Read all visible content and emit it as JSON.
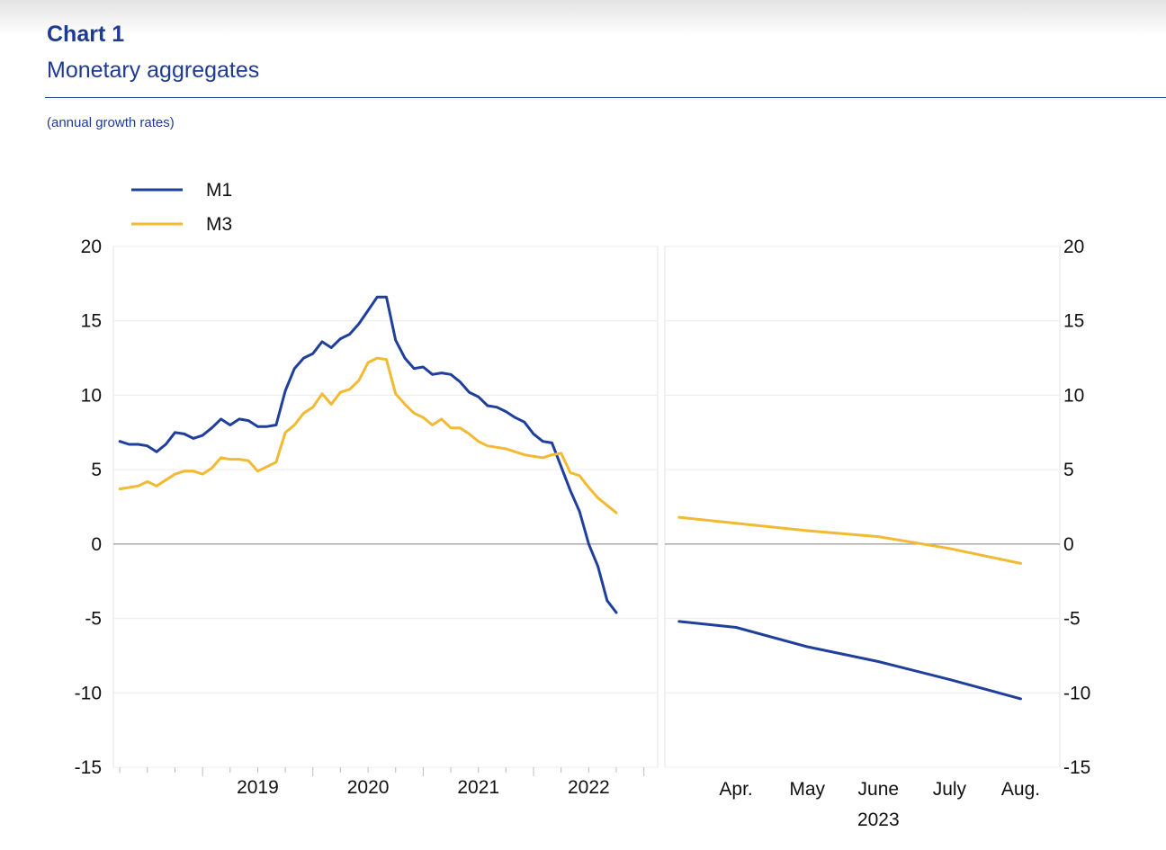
{
  "header": {
    "chart_number": "Chart 1",
    "title": "Monetary aggregates",
    "subtitle": "(annual growth rates)"
  },
  "colors": {
    "M1": "#1f3f9c",
    "M3": "#f2b933",
    "header": "#1f3a93",
    "zero_line": "#9a9a9a"
  },
  "chart_data": [
    {
      "type": "line",
      "panel": "left",
      "title": "",
      "x_tick_labels": [
        "2019",
        "2020",
        "2021",
        "2022"
      ],
      "x_range": [
        "2018-04",
        "2023-03"
      ],
      "ylim": [
        -15,
        20
      ],
      "y_ticks": [
        -15,
        -10,
        -5,
        0,
        5,
        10,
        15,
        20
      ],
      "y_tick_labels": [
        "20",
        "15",
        "10",
        "5",
        "0",
        "-5",
        "-10",
        "-15"
      ],
      "grid": true,
      "legend": "top-left",
      "x": [
        "2018-04",
        "2018-05",
        "2018-06",
        "2018-07",
        "2018-08",
        "2018-09",
        "2018-10",
        "2018-11",
        "2018-12",
        "2019-01",
        "2019-02",
        "2019-03",
        "2019-04",
        "2019-05",
        "2019-06",
        "2019-07",
        "2019-08",
        "2019-09",
        "2019-10",
        "2019-11",
        "2019-12",
        "2020-01",
        "2020-02",
        "2020-03",
        "2020-04",
        "2020-05",
        "2020-06",
        "2020-07",
        "2020-08",
        "2020-09",
        "2020-10",
        "2020-11",
        "2020-12",
        "2021-01",
        "2021-02",
        "2021-03",
        "2021-04",
        "2021-05",
        "2021-06",
        "2021-07",
        "2021-08",
        "2021-09",
        "2021-10",
        "2021-11",
        "2021-12",
        "2022-01",
        "2022-02",
        "2022-03",
        "2022-04",
        "2022-05",
        "2022-06",
        "2022-07",
        "2022-08",
        "2022-09",
        "2022-10",
        "2022-11",
        "2022-12",
        "2023-01",
        "2023-02",
        "2023-03"
      ],
      "series": [
        {
          "name": "M1",
          "values": [
            6.9,
            6.7,
            6.7,
            6.6,
            6.2,
            6.7,
            7.5,
            7.4,
            7.1,
            7.3,
            7.8,
            8.4,
            8.0,
            8.4,
            8.3,
            7.9,
            7.9,
            8.0,
            10.3,
            11.8,
            12.5,
            12.8,
            13.6,
            13.2,
            13.8,
            14.1,
            14.8,
            15.7,
            16.6,
            16.6,
            13.7,
            12.5,
            11.8,
            11.9,
            11.4,
            11.5,
            11.4,
            10.9,
            10.2,
            9.9,
            9.3,
            9.2,
            8.9,
            8.5,
            8.2,
            7.4,
            6.9,
            6.8,
            5.2,
            3.6,
            2.2,
            0.0,
            -1.5,
            -3.8,
            -4.6,
            null,
            null,
            null,
            null,
            null
          ]
        },
        {
          "name": "M3",
          "values": [
            3.7,
            3.8,
            3.9,
            4.2,
            3.9,
            4.3,
            4.7,
            4.9,
            4.9,
            4.7,
            5.1,
            5.8,
            5.7,
            5.7,
            5.6,
            4.9,
            5.2,
            5.5,
            7.5,
            8.0,
            8.8,
            9.2,
            10.1,
            9.4,
            10.2,
            10.4,
            11.0,
            12.2,
            12.5,
            12.4,
            10.1,
            9.4,
            8.8,
            8.5,
            8.0,
            8.4,
            7.8,
            7.8,
            7.4,
            6.9,
            6.6,
            6.5,
            6.4,
            6.2,
            6.0,
            5.9,
            5.8,
            6.0,
            6.1,
            4.8,
            4.6,
            3.8,
            3.1,
            2.6,
            2.1,
            null,
            null,
            null,
            null,
            null
          ]
        }
      ]
    },
    {
      "type": "line",
      "panel": "right",
      "title": "",
      "categories": [
        "Apr.",
        "May",
        "June",
        "July",
        "Aug."
      ],
      "year_label": "2023",
      "ylim": [
        -15,
        20
      ],
      "y_ticks": [
        -15,
        -10,
        -5,
        0,
        5,
        10,
        15,
        20
      ],
      "y_tick_labels": [
        "20",
        "15",
        "10",
        "5",
        "0",
        "-5",
        "-10",
        "-15"
      ],
      "grid": true,
      "x": [
        3.2,
        4,
        5,
        6,
        7,
        8
      ],
      "series": [
        {
          "name": "M1",
          "values": [
            -5.2,
            -5.6,
            -6.9,
            -7.9,
            -9.1,
            -10.4
          ]
        },
        {
          "name": "M3",
          "values": [
            1.8,
            1.4,
            0.9,
            0.5,
            -0.3,
            -1.3
          ]
        }
      ]
    }
  ]
}
